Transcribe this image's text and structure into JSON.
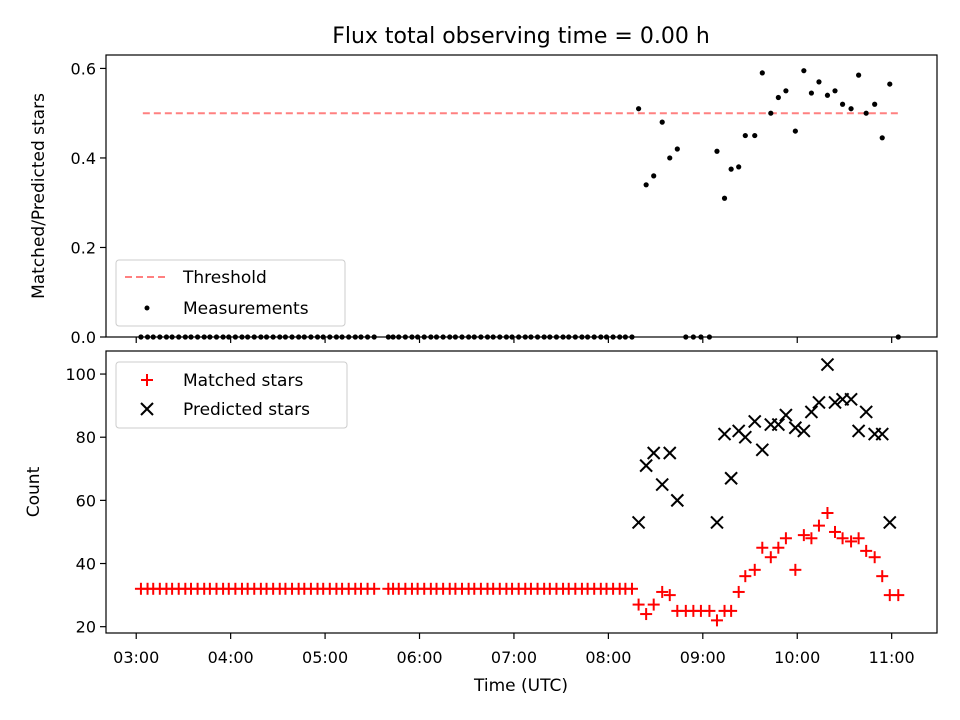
{
  "title": "Flux total observing time = 0.00 h",
  "xlabel": "Time (UTC)",
  "x_ticks": [
    {
      "label": "03:00",
      "hour": 3.0
    },
    {
      "label": "04:00",
      "hour": 4.0
    },
    {
      "label": "05:00",
      "hour": 5.0
    },
    {
      "label": "06:00",
      "hour": 6.0
    },
    {
      "label": "07:00",
      "hour": 7.0
    },
    {
      "label": "08:00",
      "hour": 8.0
    },
    {
      "label": "09:00",
      "hour": 9.0
    },
    {
      "label": "10:00",
      "hour": 10.0
    },
    {
      "label": "11:00",
      "hour": 11.0
    }
  ],
  "chart_data": [
    {
      "type": "scatter",
      "ylabel": "Matched/Predicted stars",
      "xlim": [
        2.68,
        11.48
      ],
      "ylim": [
        0,
        0.63
      ],
      "y_ticks": [
        0.0,
        0.2,
        0.4,
        0.6
      ],
      "y_tick_labels": [
        "0.0",
        "0.2",
        "0.4",
        "0.6"
      ],
      "legend": {
        "position": "lower-left"
      },
      "series": [
        {
          "name": "Threshold",
          "kind": "line",
          "style": "dashed",
          "color": "#ff8080",
          "x": [
            3.07,
            11.07
          ],
          "y": [
            0.5,
            0.5
          ]
        },
        {
          "name": "Measurements",
          "kind": "scatter",
          "color": "#000000",
          "x": [
            3.05,
            3.12,
            3.18,
            3.25,
            3.32,
            3.38,
            3.45,
            3.52,
            3.58,
            3.65,
            3.72,
            3.78,
            3.85,
            3.92,
            3.98,
            4.05,
            4.12,
            4.18,
            4.25,
            4.32,
            4.38,
            4.45,
            4.52,
            4.58,
            4.65,
            4.72,
            4.78,
            4.85,
            4.92,
            4.98,
            5.05,
            5.12,
            5.18,
            5.25,
            5.32,
            5.38,
            5.45,
            5.52,
            5.67,
            5.72,
            5.78,
            5.85,
            5.92,
            5.98,
            6.05,
            6.12,
            6.18,
            6.25,
            6.32,
            6.38,
            6.45,
            6.52,
            6.58,
            6.65,
            6.72,
            6.78,
            6.85,
            6.92,
            6.98,
            7.05,
            7.12,
            7.18,
            7.25,
            7.32,
            7.38,
            7.45,
            7.52,
            7.58,
            7.65,
            7.72,
            7.78,
            7.85,
            7.92,
            7.98,
            8.05,
            8.12,
            8.18,
            8.25,
            8.32,
            8.4,
            8.48,
            8.57,
            8.65,
            8.73,
            8.82,
            8.9,
            8.98,
            9.07,
            9.15,
            9.23,
            9.3,
            9.38,
            9.45,
            9.55,
            9.63,
            9.72,
            9.8,
            9.88,
            9.98,
            10.07,
            10.15,
            10.23,
            10.32,
            10.4,
            10.48,
            10.57,
            10.65,
            10.73,
            10.82,
            10.9,
            10.98,
            11.07
          ],
          "y": [
            0,
            0,
            0,
            0,
            0,
            0,
            0,
            0,
            0,
            0,
            0,
            0,
            0,
            0,
            0,
            0,
            0,
            0,
            0,
            0,
            0,
            0,
            0,
            0,
            0,
            0,
            0,
            0,
            0,
            0,
            0,
            0,
            0,
            0,
            0,
            0,
            0,
            0,
            0,
            0,
            0,
            0,
            0,
            0,
            0,
            0,
            0,
            0,
            0,
            0,
            0,
            0,
            0,
            0,
            0,
            0,
            0,
            0,
            0,
            0,
            0,
            0,
            0,
            0,
            0,
            0,
            0,
            0,
            0,
            0,
            0,
            0,
            0,
            0,
            0,
            0,
            0,
            0,
            0.51,
            0.34,
            0.36,
            0.48,
            0.4,
            0.42,
            0,
            0,
            0,
            0,
            0.415,
            0.31,
            0.375,
            0.38,
            0.45,
            0.45,
            0.59,
            0.5,
            0.535,
            0.55,
            0.46,
            0.595,
            0.545,
            0.57,
            0.54,
            0.55,
            0.52,
            0.51,
            0.585,
            0.5,
            0.52,
            0.445,
            0.565,
            0
          ]
        }
      ]
    },
    {
      "type": "scatter",
      "ylabel": "Count",
      "xlim": [
        2.68,
        11.48
      ],
      "ylim": [
        18,
        107.3
      ],
      "y_ticks": [
        20,
        40,
        60,
        80,
        100
      ],
      "y_tick_labels": [
        "20",
        "40",
        "60",
        "80",
        "100"
      ],
      "legend": {
        "position": "top-left"
      },
      "series": [
        {
          "name": "Matched stars",
          "kind": "scatter",
          "marker": "plus",
          "color": "#ff0000",
          "x": [
            3.05,
            3.12,
            3.18,
            3.25,
            3.32,
            3.38,
            3.45,
            3.52,
            3.58,
            3.65,
            3.72,
            3.78,
            3.85,
            3.92,
            3.98,
            4.05,
            4.12,
            4.18,
            4.25,
            4.32,
            4.38,
            4.45,
            4.52,
            4.58,
            4.65,
            4.72,
            4.78,
            4.85,
            4.92,
            4.98,
            5.05,
            5.12,
            5.18,
            5.25,
            5.32,
            5.38,
            5.45,
            5.52,
            5.67,
            5.72,
            5.78,
            5.85,
            5.92,
            5.98,
            6.05,
            6.12,
            6.18,
            6.25,
            6.32,
            6.38,
            6.45,
            6.52,
            6.58,
            6.65,
            6.72,
            6.78,
            6.85,
            6.92,
            6.98,
            7.05,
            7.12,
            7.18,
            7.25,
            7.32,
            7.38,
            7.45,
            7.52,
            7.58,
            7.65,
            7.72,
            7.78,
            7.85,
            7.92,
            7.98,
            8.05,
            8.12,
            8.18,
            8.25,
            8.32,
            8.4,
            8.48,
            8.57,
            8.65,
            8.73,
            8.82,
            8.9,
            8.98,
            9.07,
            9.15,
            9.23,
            9.3,
            9.38,
            9.45,
            9.55,
            9.63,
            9.72,
            9.8,
            9.88,
            9.98,
            10.07,
            10.15,
            10.23,
            10.32,
            10.4,
            10.48,
            10.57,
            10.65,
            10.73,
            10.82,
            10.9,
            10.98,
            11.07
          ],
          "y": [
            32,
            32,
            32,
            32,
            32,
            32,
            32,
            32,
            32,
            32,
            32,
            32,
            32,
            32,
            32,
            32,
            32,
            32,
            32,
            32,
            32,
            32,
            32,
            32,
            32,
            32,
            32,
            32,
            32,
            32,
            32,
            32,
            32,
            32,
            32,
            32,
            32,
            32,
            32,
            32,
            32,
            32,
            32,
            32,
            32,
            32,
            32,
            32,
            32,
            32,
            32,
            32,
            32,
            32,
            32,
            32,
            32,
            32,
            32,
            32,
            32,
            32,
            32,
            32,
            32,
            32,
            32,
            32,
            32,
            32,
            32,
            32,
            32,
            32,
            32,
            32,
            32,
            32,
            27,
            24,
            27,
            31,
            30,
            25,
            25,
            25,
            25,
            25,
            22,
            25,
            25,
            31,
            36,
            38,
            45,
            42,
            45,
            48,
            38,
            49,
            48,
            52,
            56,
            50,
            48,
            47,
            48,
            44,
            42,
            36,
            30,
            30
          ]
        },
        {
          "name": "Predicted stars",
          "kind": "scatter",
          "marker": "x",
          "color": "#000000",
          "x": [
            8.32,
            8.4,
            8.48,
            8.57,
            8.65,
            8.73,
            9.15,
            9.23,
            9.3,
            9.38,
            9.45,
            9.55,
            9.63,
            9.72,
            9.8,
            9.88,
            9.98,
            10.07,
            10.15,
            10.23,
            10.32,
            10.4,
            10.48,
            10.57,
            10.65,
            10.73,
            10.82,
            10.9,
            10.98
          ],
          "y": [
            53,
            71,
            75,
            65,
            75,
            60,
            53,
            81,
            67,
            82,
            80,
            85,
            76,
            84,
            84,
            87,
            83,
            82,
            88,
            91,
            103,
            91,
            92,
            92,
            82,
            88,
            81,
            81,
            53
          ]
        }
      ]
    }
  ]
}
